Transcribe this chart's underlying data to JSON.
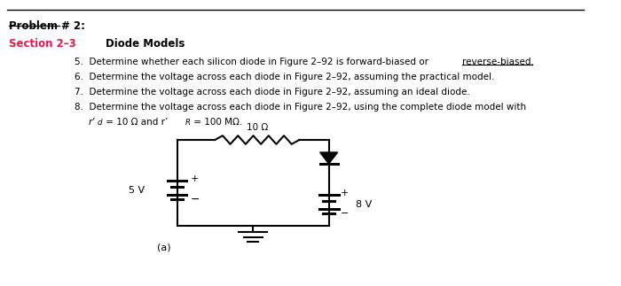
{
  "bg_color": "#ffffff",
  "problem_title": "Problem # 2:",
  "section_label": "Section 2–3",
  "section_color": "#e8174a",
  "section_title": "Diode Models",
  "fig_label": "(a)",
  "item5": "5.  Determine whether each silicon diode in Figure 2–92 is forward-biased or ",
  "item5_end": "reverse-biased.",
  "item6": "6.  Determine the voltage across each diode in Figure 2–92, assuming the practical model.",
  "item7": "7.  Determine the voltage across each diode in Figure 2–92, assuming an ideal diode.",
  "item8a": "8.  Determine the voltage across each diode in Figure 2–92, using the complete diode model with",
  "item8b_mid": " = 10 Ω and r’",
  "item8b_end": " = 100 MΩ.",
  "resistor_label": "10 Ω",
  "v1_label": "5 V",
  "v2_label": "8 V"
}
